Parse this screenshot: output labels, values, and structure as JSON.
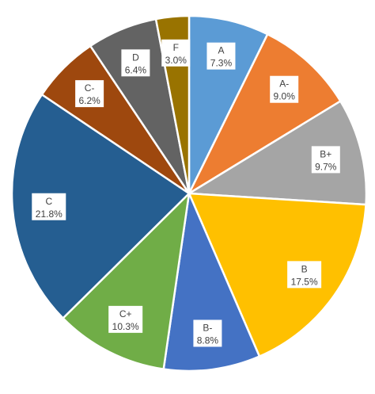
{
  "chart_data": {
    "type": "pie",
    "title": "",
    "legend": "none",
    "start_angle_deg": 0,
    "direction": "clockwise",
    "slices": [
      {
        "label": "A",
        "value": 7.3,
        "value_label": "7.3%",
        "color": "#5b9bd5"
      },
      {
        "label": "A-",
        "value": 9.0,
        "value_label": "9.0%",
        "color": "#ed7d31"
      },
      {
        "label": "B+",
        "value": 9.7,
        "value_label": "9.7%",
        "color": "#a5a5a5"
      },
      {
        "label": "B",
        "value": 17.5,
        "value_label": "17.5%",
        "color": "#ffc000"
      },
      {
        "label": "B-",
        "value": 8.8,
        "value_label": "8.8%",
        "color": "#4472c4"
      },
      {
        "label": "C+",
        "value": 10.3,
        "value_label": "10.3%",
        "color": "#70ad47"
      },
      {
        "label": "C",
        "value": 21.8,
        "value_label": "21.8%",
        "color": "#255e91"
      },
      {
        "label": "C-",
        "value": 6.2,
        "value_label": "6.2%",
        "color": "#9e480e"
      },
      {
        "label": "D",
        "value": 6.4,
        "value_label": "6.4%",
        "color": "#636363"
      },
      {
        "label": "F",
        "value": 3.0,
        "value_label": "3.0%",
        "color": "#997300"
      }
    ]
  }
}
